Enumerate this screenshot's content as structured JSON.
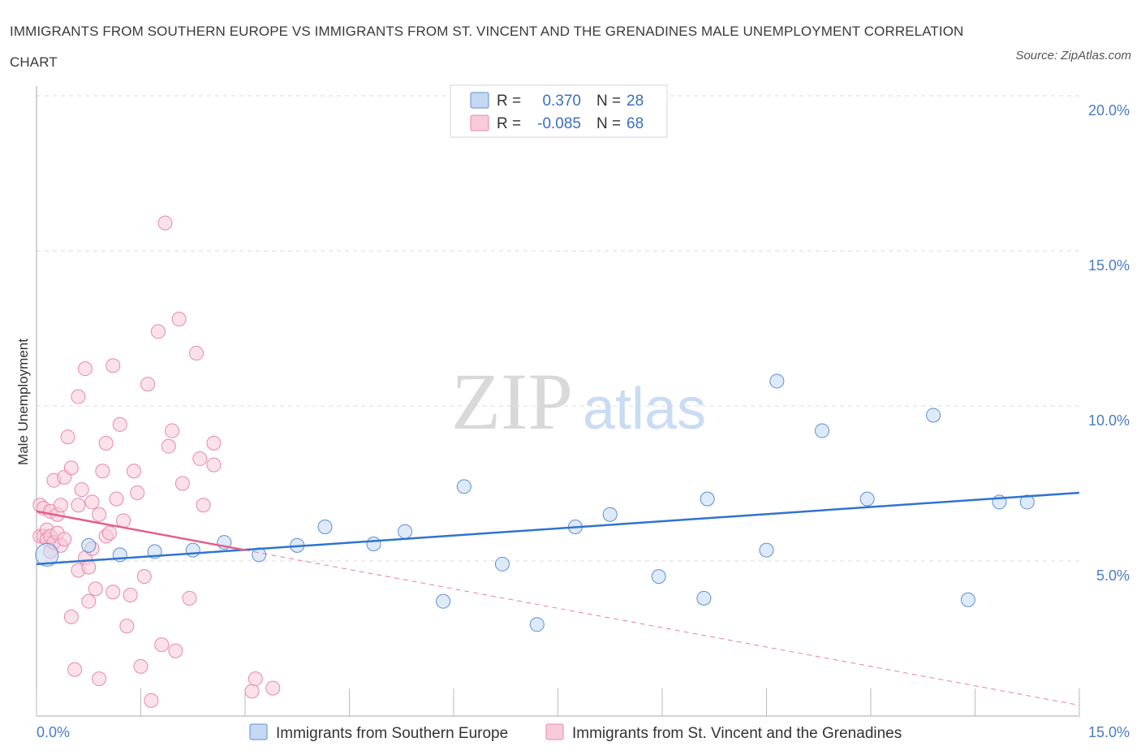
{
  "header": {
    "title": "IMMIGRANTS FROM SOUTHERN EUROPE VS IMMIGRANTS FROM ST. VINCENT AND THE GRENADINES MALE UNEMPLOYMENT CORRELATION CHART",
    "source": "Source: ZipAtlas.com"
  },
  "watermark": {
    "zip": "ZIP",
    "atlas": "atlas"
  },
  "colors": {
    "blue": "#5b8fd6",
    "blue_fill": "#c5d9f3",
    "blue_line": "#2f74d0",
    "pink": "#e888a8",
    "pink_fill": "#f7cbd9",
    "pink_line": "#e0608c",
    "tick": "#4a7cc7",
    "grid": "#dddddd"
  },
  "chart_data": {
    "type": "scatter",
    "title": "IMMIGRANTS FROM SOUTHERN EUROPE VS IMMIGRANTS FROM ST. VINCENT AND THE GRENADINES MALE UNEMPLOYMENT CORRELATION CHART",
    "xlabel": "",
    "ylabel": "Male Unemployment",
    "xlim": [
      0,
      15
    ],
    "ylim": [
      0,
      20
    ],
    "x_tick_labels": [
      "0.0%",
      "15.0%"
    ],
    "y_ticks": [
      5,
      10,
      15,
      20
    ],
    "y_tick_labels": [
      "5.0%",
      "10.0%",
      "15.0%",
      "20.0%"
    ],
    "grid": true,
    "stats_legend": [
      {
        "r_label": "R =",
        "r": "0.370",
        "n_label": "N =",
        "n": "28",
        "series": "blue"
      },
      {
        "r_label": "R =",
        "r": "-0.085",
        "n_label": "N =",
        "n": "68",
        "series": "pink"
      }
    ],
    "series": [
      {
        "name": "Immigrants from Southern Europe",
        "color": "blue",
        "points": [
          [
            0.15,
            5.2
          ],
          [
            0.75,
            5.5
          ],
          [
            1.2,
            5.2
          ],
          [
            1.7,
            5.3
          ],
          [
            2.25,
            5.35
          ],
          [
            2.7,
            5.6
          ],
          [
            3.2,
            5.2
          ],
          [
            3.75,
            5.5
          ],
          [
            4.15,
            6.1
          ],
          [
            4.85,
            5.55
          ],
          [
            5.3,
            5.95
          ],
          [
            5.85,
            3.7
          ],
          [
            6.15,
            7.4
          ],
          [
            6.7,
            4.9
          ],
          [
            7.2,
            2.95
          ],
          [
            7.75,
            6.1
          ],
          [
            8.25,
            6.5
          ],
          [
            8.95,
            4.5
          ],
          [
            9.6,
            3.8
          ],
          [
            9.65,
            7.0
          ],
          [
            10.5,
            5.35
          ],
          [
            10.65,
            10.8
          ],
          [
            11.3,
            9.2
          ],
          [
            11.95,
            7.0
          ],
          [
            12.9,
            9.7
          ],
          [
            13.4,
            3.75
          ],
          [
            13.85,
            6.9
          ],
          [
            14.25,
            6.9
          ]
        ],
        "trend": {
          "x": [
            0.0,
            15.0
          ],
          "y": [
            4.9,
            7.2
          ],
          "style": "solid"
        }
      },
      {
        "name": "Immigrants from St. Vincent and the Grenadines",
        "color": "pink",
        "points": [
          [
            0.05,
            6.8
          ],
          [
            0.05,
            5.8
          ],
          [
            0.1,
            6.7
          ],
          [
            0.1,
            5.8
          ],
          [
            0.15,
            6.0
          ],
          [
            0.15,
            5.7
          ],
          [
            0.2,
            6.6
          ],
          [
            0.2,
            5.8
          ],
          [
            0.2,
            5.3
          ],
          [
            0.25,
            7.6
          ],
          [
            0.25,
            5.6
          ],
          [
            0.3,
            6.5
          ],
          [
            0.3,
            5.9
          ],
          [
            0.35,
            6.8
          ],
          [
            0.35,
            5.5
          ],
          [
            0.4,
            7.7
          ],
          [
            0.4,
            5.7
          ],
          [
            0.45,
            9.0
          ],
          [
            0.5,
            3.2
          ],
          [
            0.55,
            1.5
          ],
          [
            0.6,
            4.7
          ],
          [
            0.6,
            10.3
          ],
          [
            0.6,
            6.8
          ],
          [
            0.65,
            7.3
          ],
          [
            0.7,
            11.2
          ],
          [
            0.7,
            5.1
          ],
          [
            0.75,
            3.7
          ],
          [
            0.75,
            4.8
          ],
          [
            0.8,
            6.9
          ],
          [
            0.85,
            4.1
          ],
          [
            0.9,
            6.5
          ],
          [
            0.9,
            1.2
          ],
          [
            0.95,
            7.9
          ],
          [
            1.0,
            8.8
          ],
          [
            1.0,
            5.8
          ],
          [
            1.05,
            5.9
          ],
          [
            1.1,
            11.3
          ],
          [
            1.1,
            4.0
          ],
          [
            1.15,
            7.0
          ],
          [
            1.2,
            9.4
          ],
          [
            1.3,
            2.9
          ],
          [
            1.35,
            3.9
          ],
          [
            1.4,
            7.9
          ],
          [
            1.45,
            7.2
          ],
          [
            1.5,
            1.6
          ],
          [
            1.55,
            4.5
          ],
          [
            1.6,
            10.7
          ],
          [
            1.65,
            0.5
          ],
          [
            1.75,
            12.4
          ],
          [
            1.8,
            2.3
          ],
          [
            1.85,
            15.9
          ],
          [
            1.9,
            8.7
          ],
          [
            1.95,
            9.2
          ],
          [
            2.0,
            2.1
          ],
          [
            2.05,
            12.8
          ],
          [
            2.2,
            3.8
          ],
          [
            2.3,
            11.7
          ],
          [
            2.35,
            8.3
          ],
          [
            2.4,
            6.8
          ],
          [
            2.55,
            8.8
          ],
          [
            2.55,
            8.1
          ],
          [
            3.1,
            0.8
          ],
          [
            3.15,
            1.2
          ],
          [
            3.4,
            0.9
          ],
          [
            0.5,
            8.0
          ],
          [
            0.8,
            5.4
          ],
          [
            1.25,
            6.3
          ],
          [
            2.1,
            7.5
          ]
        ],
        "trend_solid": {
          "x": [
            0.0,
            3.0
          ],
          "y": [
            6.6,
            5.35
          ]
        },
        "trend_dashed": {
          "x": [
            3.0,
            15.0
          ],
          "y": [
            5.35,
            0.35
          ]
        }
      }
    ]
  }
}
